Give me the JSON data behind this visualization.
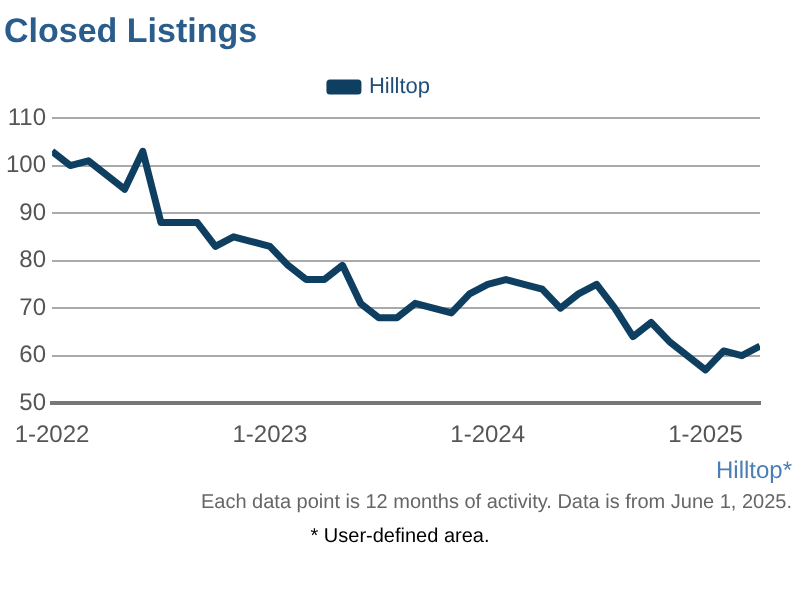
{
  "chart_data": {
    "type": "line",
    "title": "Closed Listings",
    "x": [
      "2022-01",
      "2022-02",
      "2022-03",
      "2022-04",
      "2022-05",
      "2022-06",
      "2022-07",
      "2022-08",
      "2022-09",
      "2022-10",
      "2022-11",
      "2022-12",
      "2023-01",
      "2023-02",
      "2023-03",
      "2023-04",
      "2023-05",
      "2023-06",
      "2023-07",
      "2023-08",
      "2023-09",
      "2023-10",
      "2023-11",
      "2023-12",
      "2024-01",
      "2024-02",
      "2024-03",
      "2024-04",
      "2024-05",
      "2024-06",
      "2024-07",
      "2024-08",
      "2024-09",
      "2024-10",
      "2024-11",
      "2024-12",
      "2025-01",
      "2025-02",
      "2025-03",
      "2025-04"
    ],
    "series": [
      {
        "name": "Hilltop",
        "color": "#0e3f61",
        "values": [
          103,
          100,
          101,
          98,
          95,
          103,
          88,
          88,
          88,
          83,
          85,
          84,
          83,
          79,
          76,
          76,
          79,
          71,
          68,
          68,
          71,
          70,
          69,
          73,
          75,
          76,
          75,
          74,
          70,
          73,
          75,
          70,
          64,
          67,
          63,
          60,
          57,
          61,
          60,
          62
        ]
      }
    ],
    "xlim": [
      "2022-01",
      "2025-04"
    ],
    "xticks": [
      {
        "value": "2022-01",
        "label": "1-2022"
      },
      {
        "value": "2023-01",
        "label": "1-2023"
      },
      {
        "value": "2024-01",
        "label": "1-2024"
      },
      {
        "value": "2025-01",
        "label": "1-2025"
      }
    ],
    "ylim": [
      50,
      110
    ],
    "yticks": [
      50,
      60,
      70,
      80,
      90,
      100,
      110
    ],
    "grid": "y",
    "legend": "top",
    "marker": "none",
    "line_style": "solid",
    "annotations": [
      "Hilltop*",
      "Each data point is 12 months of activity. Data is from June 1, 2025.",
      "* User-defined area."
    ]
  }
}
